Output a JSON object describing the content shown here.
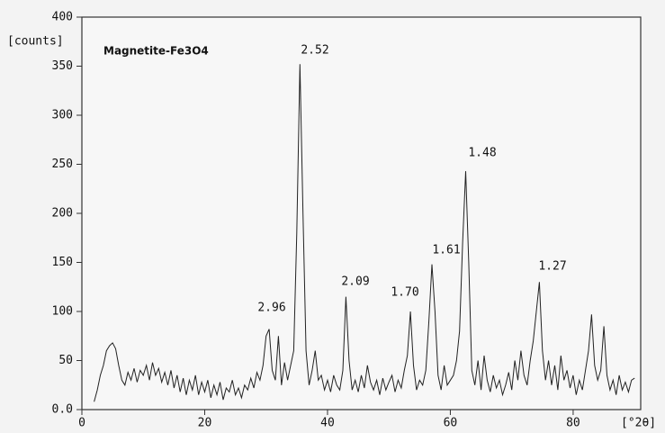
{
  "chart_data": {
    "type": "line",
    "title": "Magnetite-Fe3O4",
    "y_label": "[counts]",
    "x_label": "[°2θ]",
    "annotations": [
      "2.96",
      "2.52",
      "2.09",
      "1.70",
      "1.61",
      "1.48",
      "1.27"
    ],
    "xlim": [
      0,
      91
    ],
    "xticks": [
      0,
      20,
      40,
      60,
      80
    ],
    "ylim": [
      0,
      400
    ],
    "yticks": [
      {
        "value": 0,
        "label": "0.0"
      },
      50,
      100,
      150,
      200,
      250,
      300,
      350,
      400
    ],
    "color": "#222222",
    "x": [
      2,
      2.5,
      3,
      3.5,
      4,
      4.5,
      5,
      5.5,
      6,
      6.5,
      7,
      7.5,
      8,
      8.5,
      9,
      9.5,
      10,
      10.5,
      11,
      11.5,
      12,
      12.5,
      13,
      13.5,
      14,
      14.5,
      15,
      15.5,
      16,
      16.5,
      17,
      17.5,
      18,
      18.5,
      19,
      19.5,
      20,
      20.5,
      21,
      21.5,
      22,
      22.5,
      23,
      23.5,
      24,
      24.5,
      25,
      25.5,
      26,
      26.5,
      27,
      27.5,
      28,
      28.5,
      29,
      29.5,
      30,
      30.5,
      31,
      31.5,
      32,
      32.5,
      33,
      33.5,
      34,
      34.5,
      35,
      35.5,
      36,
      36.5,
      37,
      37.5,
      38,
      38.5,
      39,
      39.5,
      40,
      40.5,
      41,
      41.5,
      42,
      42.5,
      43,
      43.5,
      44,
      44.5,
      45,
      45.5,
      46,
      46.5,
      47,
      47.5,
      48,
      48.5,
      49,
      49.5,
      50,
      50.5,
      51,
      51.5,
      52,
      52.5,
      53,
      53.5,
      54,
      54.5,
      55,
      55.5,
      56,
      56.5,
      57,
      57.5,
      58,
      58.5,
      59,
      59.5,
      60,
      60.5,
      61,
      61.5,
      62,
      62.5,
      63,
      63.5,
      64,
      64.5,
      65,
      65.5,
      66,
      66.5,
      67,
      67.5,
      68,
      68.5,
      69,
      69.5,
      70,
      70.5,
      71,
      71.5,
      72,
      72.5,
      73,
      73.5,
      74,
      74.5,
      75,
      75.5,
      76,
      76.5,
      77,
      77.5,
      78,
      78.5,
      79,
      79.5,
      80,
      80.5,
      81,
      81.5,
      82,
      82.5,
      83,
      83.5,
      84,
      84.5,
      85,
      85.5,
      86,
      86.5,
      87,
      87.5,
      88,
      88.5,
      89,
      89.5,
      90
    ],
    "values": [
      8,
      20,
      35,
      45,
      60,
      65,
      68,
      62,
      45,
      30,
      25,
      38,
      30,
      42,
      28,
      40,
      35,
      45,
      30,
      48,
      35,
      42,
      28,
      38,
      25,
      40,
      22,
      35,
      18,
      32,
      15,
      30,
      20,
      35,
      15,
      28,
      18,
      30,
      12,
      25,
      15,
      28,
      10,
      22,
      18,
      30,
      15,
      22,
      12,
      25,
      20,
      32,
      22,
      38,
      30,
      45,
      75,
      82,
      40,
      30,
      75,
      25,
      48,
      30,
      45,
      60,
      180,
      352,
      200,
      60,
      25,
      40,
      60,
      30,
      35,
      20,
      30,
      18,
      35,
      25,
      20,
      40,
      115,
      50,
      20,
      30,
      18,
      35,
      22,
      45,
      28,
      20,
      30,
      15,
      32,
      20,
      28,
      35,
      18,
      30,
      22,
      40,
      55,
      100,
      45,
      20,
      30,
      25,
      40,
      90,
      148,
      100,
      35,
      20,
      45,
      25,
      30,
      35,
      50,
      80,
      170,
      243,
      150,
      40,
      25,
      50,
      20,
      55,
      30,
      18,
      35,
      22,
      30,
      15,
      25,
      38,
      20,
      50,
      30,
      60,
      35,
      25,
      50,
      70,
      100,
      130,
      60,
      30,
      50,
      25,
      45,
      20,
      55,
      30,
      40,
      22,
      35,
      15,
      30,
      20,
      40,
      60,
      97,
      45,
      30,
      40,
      85,
      35,
      20,
      30,
      15,
      35,
      20,
      28,
      18,
      30,
      32
    ]
  }
}
